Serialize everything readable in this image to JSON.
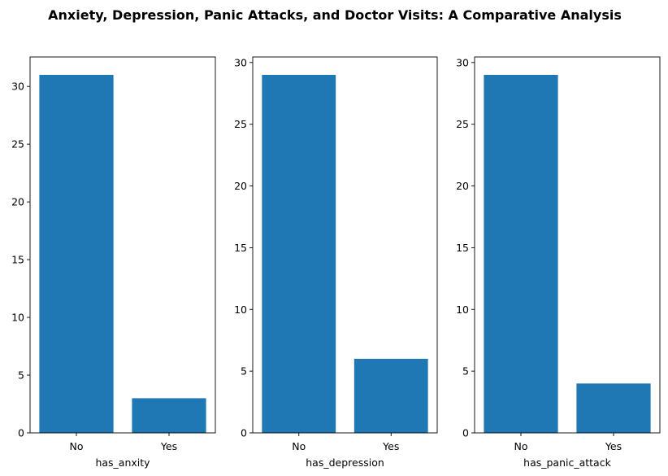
{
  "figure": {
    "title": "Anxiety, Depression, Panic Attacks, and Doctor Visits: A Comparative Analysis"
  },
  "chart_data": [
    {
      "type": "bar",
      "categories": [
        "No",
        "Yes"
      ],
      "values": [
        31,
        3
      ],
      "xlabel": "has_anxity",
      "ylabel": "",
      "ylim": [
        0,
        32.55
      ],
      "yticks": [
        0,
        5,
        10,
        15,
        20,
        25,
        30
      ],
      "color": "#1f77b4",
      "grid": false
    },
    {
      "type": "bar",
      "categories": [
        "No",
        "Yes"
      ],
      "values": [
        29,
        6
      ],
      "xlabel": "has_depression",
      "ylabel": "",
      "ylim": [
        0,
        30.45
      ],
      "yticks": [
        0,
        5,
        10,
        15,
        20,
        25,
        30
      ],
      "color": "#1f77b4",
      "grid": false
    },
    {
      "type": "bar",
      "categories": [
        "No",
        "Yes"
      ],
      "values": [
        29,
        4
      ],
      "xlabel": "has_panic_attack",
      "ylabel": "",
      "ylim": [
        0,
        30.45
      ],
      "yticks": [
        0,
        5,
        10,
        15,
        20,
        25,
        30
      ],
      "color": "#1f77b4",
      "grid": false
    }
  ]
}
